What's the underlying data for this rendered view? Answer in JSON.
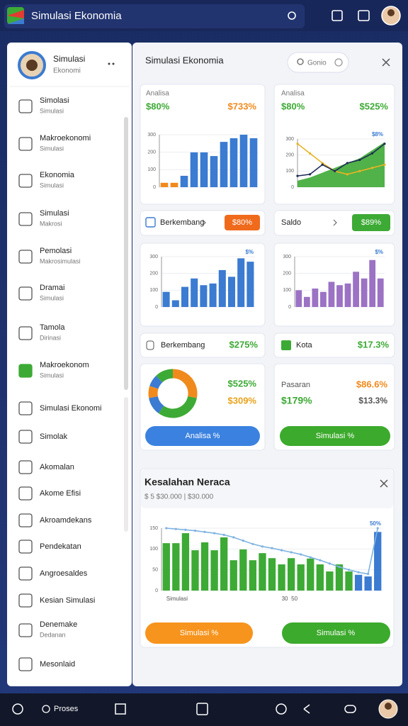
{
  "top_bar": {
    "title": "Simulasi Ekonomia"
  },
  "sidebar": {
    "profile": {
      "name": "Simulasi",
      "subtitle": "Ekonomi"
    },
    "items": [
      {
        "label": "Simolasi",
        "sub": "Simulasi"
      },
      {
        "label": "Makroekonomi",
        "sub": "Simulasi"
      },
      {
        "label": "Ekonomia",
        "sub": "Simulasi"
      },
      {
        "label": "Simulasi",
        "sub": "Makrosi"
      },
      {
        "label": "Pemolasi",
        "sub": "Makrosimulasi"
      },
      {
        "label": "Dramai",
        "sub": "Simulasi"
      },
      {
        "label": "Tamola",
        "sub": "Dirinasi"
      },
      {
        "label": "Makroekonom",
        "sub": "Simulasi"
      },
      {
        "label": "Simulasi Ekonomi"
      },
      {
        "label": "Simolak"
      },
      {
        "label": "Akomalan"
      },
      {
        "label": "Akome Efisi"
      },
      {
        "label": "Akroamdekans"
      },
      {
        "label": "Pendekatan"
      },
      {
        "label": "Angroesaldes"
      },
      {
        "label": "Kesian Simulasi"
      },
      {
        "label": "Denemake",
        "sub": "Dedanan"
      },
      {
        "label": "Mesonlaid"
      }
    ]
  },
  "panel": {
    "title": "Simulasi Ekonomia",
    "search": "Gonio",
    "cards": [
      {
        "label": "Analisa",
        "value": "$80%",
        "value2": "$733%",
        "chart": {
          "type": "bar",
          "ylim": [
            0,
            300
          ],
          "yticks": [
            0,
            100,
            200,
            300
          ],
          "values": [
            25,
            25,
            65,
            199,
            199,
            178,
            259,
            280,
            300,
            280
          ],
          "colors": [
            "#f08a1c",
            "#f08a1c",
            "#3b7bd1",
            "#3b7bd1",
            "#3b7bd1",
            "#3b7bd1",
            "#3b7bd1",
            "#3b7bd1",
            "#3b7bd1",
            "#3b7bd1"
          ]
        }
      },
      {
        "label": "Analisa",
        "value": "$80%",
        "value2": "$525%",
        "chart": {
          "type": "line",
          "ylim": [
            0,
            300
          ],
          "yticks": [
            0,
            100,
            200,
            300
          ],
          "annotation": "$8%",
          "series": [
            {
              "color": "#3daa35",
              "kind": "area",
              "values": [
                40,
                60,
                90,
                120,
                150,
                180,
                230,
                280
              ]
            },
            {
              "color": "#e8b423",
              "kind": "line",
              "values": [
                270,
                210,
                150,
                100,
                80,
                100,
                120,
                140
              ]
            },
            {
              "color": "#1e2c55",
              "kind": "line",
              "values": [
                70,
                80,
                140,
                100,
                150,
                170,
                210,
                270
              ]
            }
          ]
        }
      },
      {
        "label": "Berkembang",
        "badge": "$80%"
      },
      {
        "label": "Saldo",
        "badge": "$89%"
      },
      {
        "chart": {
          "type": "bar",
          "ylim": [
            0,
            300
          ],
          "yticks": [
            0,
            100,
            200,
            300
          ],
          "annotation": "$%",
          "color": "#3b7bd1",
          "values": [
            90,
            40,
            120,
            170,
            130,
            140,
            220,
            180,
            290,
            270
          ]
        }
      },
      {
        "chart": {
          "type": "bar",
          "ylim": [
            0,
            300
          ],
          "yticks": [
            0,
            100,
            200,
            300
          ],
          "annotation": "$%",
          "color": "#9b72c4",
          "values": [
            100,
            60,
            110,
            90,
            150,
            130,
            140,
            210,
            170,
            280,
            170
          ]
        }
      },
      {
        "label": "Berkembang",
        "value": "$275%"
      },
      {
        "label": "Kota",
        "value": "$17.3%"
      },
      {
        "value": "$525%",
        "value2": "$309%",
        "button": "Analisa %",
        "chart": {
          "type": "pie",
          "values": [
            28,
            32,
            12,
            8,
            8,
            12
          ],
          "colors": [
            "#f08a1c",
            "#3daa35",
            "#3b7bd1",
            "#f08a1c",
            "#3b7bd1",
            "#3daa35"
          ]
        }
      },
      {
        "label": "Pasaran",
        "value": "$86.6%",
        "value2": "$179%",
        "value3": "$13.3%",
        "button": "Simulasi %"
      }
    ]
  },
  "report": {
    "title": "Kesalahan Neraca",
    "subtitle": "$ 5 $30.000 | $30.000",
    "chart": {
      "type": "bar",
      "ylim": [
        0,
        150
      ],
      "yticks": [
        0,
        50,
        100,
        150
      ],
      "annotation": "50%",
      "categories": [
        "Simulasi",
        null,
        null,
        null,
        null,
        null,
        null,
        null,
        null,
        null,
        null,
        null,
        "30",
        "50",
        null,
        null,
        null,
        null,
        null,
        null,
        null,
        null,
        null
      ],
      "values": [
        114,
        114,
        138,
        97,
        116,
        97,
        128,
        73,
        99,
        73,
        90,
        78,
        63,
        78,
        63,
        77,
        63,
        46,
        63,
        46,
        38,
        34,
        141
      ],
      "colors": [
        "#3daa35",
        "#3daa35",
        "#3daa35",
        "#3daa35",
        "#3daa35",
        "#3daa35",
        "#3daa35",
        "#3daa35",
        "#3daa35",
        "#3daa35",
        "#3daa35",
        "#3daa35",
        "#3daa35",
        "#3daa35",
        "#3daa35",
        "#3daa35",
        "#3daa35",
        "#3daa35",
        "#3daa35",
        "#3daa35",
        "#3b7bd1",
        "#3b7bd1",
        "#3b7bd1"
      ],
      "series": [
        {
          "color": "#7fb3e0",
          "kind": "line",
          "values": [
            150,
            148,
            146,
            144,
            141,
            138,
            134,
            128,
            120,
            112,
            106,
            102,
            97,
            92,
            87,
            80,
            73,
            65,
            57,
            50,
            44,
            40,
            150
          ]
        }
      ]
    },
    "buttons": [
      "Simulasi %",
      "Simulasi %"
    ]
  },
  "bottom_bar": {
    "label": "Proses"
  }
}
